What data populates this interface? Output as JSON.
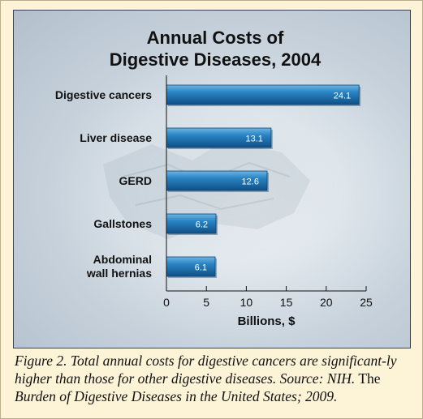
{
  "chart_data": {
    "type": "bar",
    "orientation": "horizontal",
    "title_lines": [
      "Annual Costs of",
      "Digestive Diseases, 2004"
    ],
    "categories": [
      [
        "Digestive cancers"
      ],
      [
        "Liver disease"
      ],
      [
        "GERD"
      ],
      [
        "Gallstones"
      ],
      [
        "Abdominal",
        "wall hernias"
      ]
    ],
    "values": [
      24.1,
      13.1,
      12.6,
      6.2,
      6.1
    ],
    "value_labels": [
      "24.1",
      "13.1",
      "12.6",
      "6.2",
      "6.1"
    ],
    "xlabel": "Billions, $",
    "xlim": [
      0,
      25
    ],
    "xticks": [
      0,
      5,
      10,
      15,
      20,
      25
    ],
    "grid": false,
    "bar_color": "#1e74b0"
  },
  "caption": {
    "italic_text": "Figure 2. Total annual costs for digestive cancers are significant-ly higher than those for other digestive diseases. Source: NIH.",
    "plain_text": " The",
    "italic_title": " Burden of Digestive Diseases in the United States",
    "end_text": "; 2009."
  }
}
